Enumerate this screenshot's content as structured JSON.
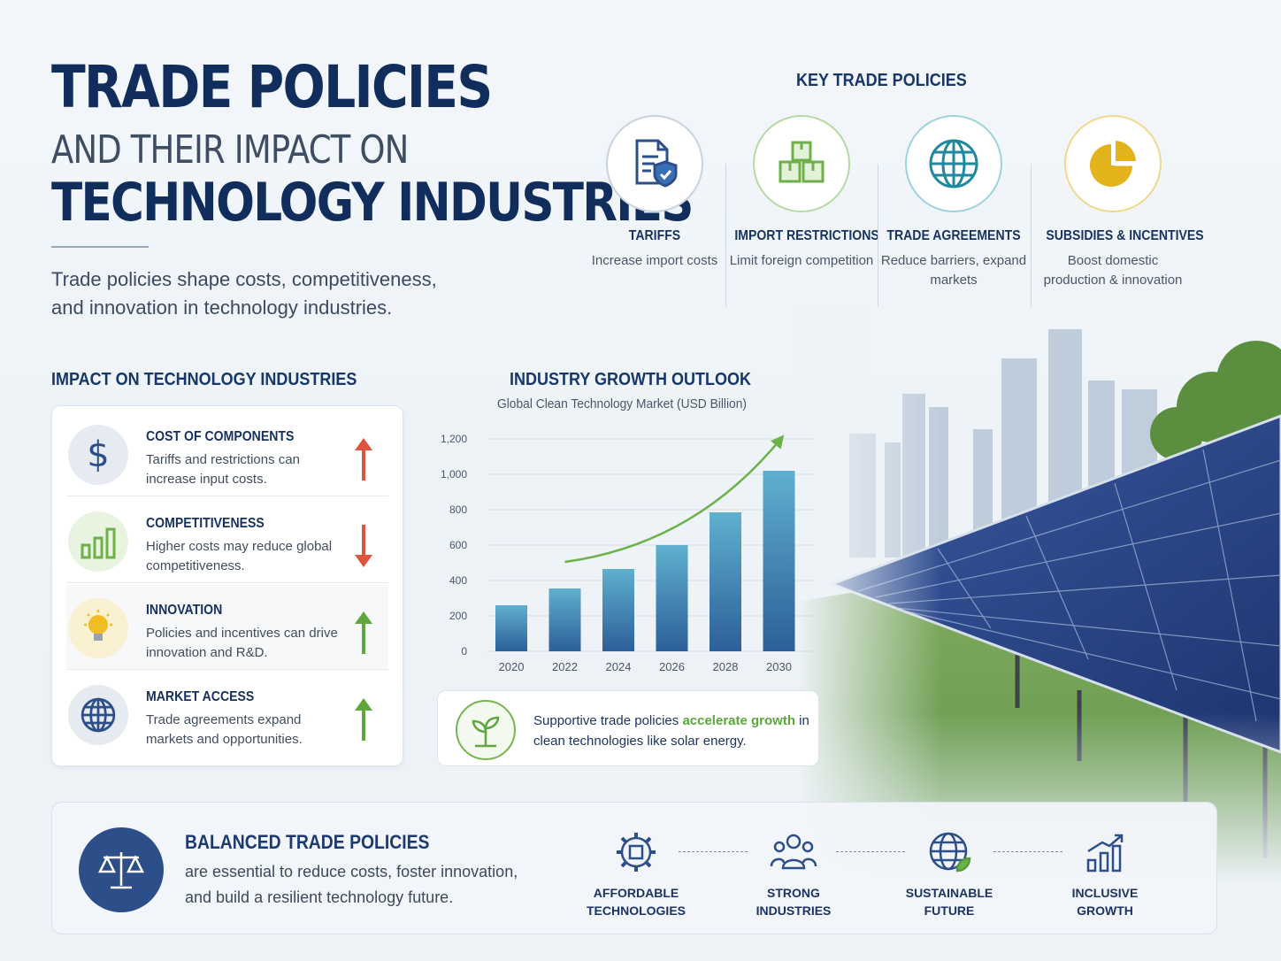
{
  "header": {
    "title_line1": "TRADE POLICIES",
    "title_line2": "AND THEIR IMPACT ON",
    "title_line3": "TECHNOLOGY INDUSTRIES",
    "intro": "Trade policies shape costs, competitiveness, and innovation in technology industries."
  },
  "key_policies": {
    "title": "KEY TRADE POLICIES",
    "items": [
      {
        "title": "TARIFFS",
        "desc": "Increase import costs",
        "icon": "document-shield-icon",
        "color": "#2c4f8a"
      },
      {
        "title": "IMPORT RESTRICTIONS",
        "desc": "Limit foreign competition",
        "icon": "boxes-icon",
        "color": "#6fb04a"
      },
      {
        "title": "TRADE AGREEMENTS",
        "desc": "Reduce barriers, expand markets",
        "icon": "globe-icon",
        "color": "#1f8a9e"
      },
      {
        "title": "SUBSIDIES & INCENTIVES",
        "desc": "Boost domestic production & innovation",
        "icon": "pie-chart-icon",
        "color": "#e3b31c"
      }
    ]
  },
  "impact": {
    "title": "IMPACT ON TECHNOLOGY INDUSTRIES",
    "items": [
      {
        "title": "COST OF COMPONENTS",
        "desc": "Tariffs and restrictions can increase input costs.",
        "icon": "dollar-icon",
        "trend": "up",
        "trend_color": "#e0533c"
      },
      {
        "title": "COMPETITIVENESS",
        "desc": "Higher costs may reduce global competitiveness.",
        "icon": "bar-chart-icon",
        "trend": "down",
        "trend_color": "#e0533c"
      },
      {
        "title": "INNOVATION",
        "desc": "Policies and incentives can drive innovation and R&D.",
        "icon": "lightbulb-icon",
        "trend": "up",
        "trend_color": "#5fa63f"
      },
      {
        "title": "MARKET ACCESS",
        "desc": "Trade agreements expand markets and opportunities.",
        "icon": "globe-icon",
        "trend": "up",
        "trend_color": "#5fa63f"
      }
    ]
  },
  "chart_data": {
    "type": "bar",
    "title": "INDUSTRY GROWTH OUTLOOK",
    "subtitle": "Global Clean Technology Market (USD Billion)",
    "categories": [
      "2020",
      "2022",
      "2024",
      "2026",
      "2028",
      "2030"
    ],
    "values": [
      260,
      355,
      465,
      600,
      785,
      1020
    ],
    "ylim": [
      0,
      1200
    ],
    "yticks": [
      "0",
      "200",
      "400",
      "600",
      "800",
      "1,000",
      "1,200"
    ],
    "ytick_values": [
      0,
      200,
      400,
      600,
      800,
      1000,
      1200
    ],
    "grid": true,
    "trend_arrow": true,
    "bar_color": "#3f87b6",
    "arrow_color": "#6cb24a"
  },
  "callout": {
    "text_before": "Supportive trade policies ",
    "highlight": "accelerate growth",
    "text_after": " in clean technologies like solar energy.",
    "icon": "sprout-icon"
  },
  "banner": {
    "title": "BALANCED TRADE POLICIES",
    "text": "are essential to reduce costs, foster innovation, and build a resilient technology future.",
    "icon": "scales-icon",
    "outcomes": [
      {
        "label_line1": "AFFORDABLE",
        "label_line2": "TECHNOLOGIES",
        "icon": "gear-chip-icon"
      },
      {
        "label_line1": "STRONG",
        "label_line2": "INDUSTRIES",
        "icon": "people-icon"
      },
      {
        "label_line1": "SUSTAINABLE",
        "label_line2": "FUTURE",
        "icon": "globe-leaf-icon"
      },
      {
        "label_line1": "INCLUSIVE",
        "label_line2": "GROWTH",
        "icon": "growth-chart-icon"
      }
    ]
  }
}
